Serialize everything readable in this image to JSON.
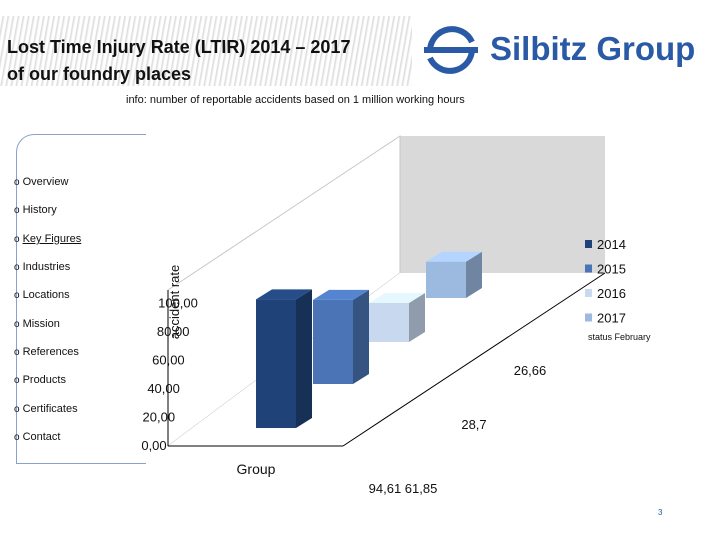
{
  "title_lines": [
    "Lost Time Injury Rate (LTIR) 2014 – 2017",
    "of our foundry places"
  ],
  "logo": {
    "text": "Silbitz Group",
    "color": "#2a5aa5"
  },
  "info": "info: number of reportable accidents based on 1 million working hours",
  "nav": [
    {
      "label": "Overview",
      "active": false
    },
    {
      "label": "History",
      "active": false
    },
    {
      "label": "Key Figures",
      "active": true
    },
    {
      "label": "Industries",
      "active": false
    },
    {
      "label": "Locations",
      "active": false
    },
    {
      "label": "Mission",
      "active": false
    },
    {
      "label": "References",
      "active": false
    },
    {
      "label": "Products",
      "active": false
    },
    {
      "label": "Certificates",
      "active": false
    },
    {
      "label": "Contact",
      "active": false
    }
  ],
  "bullet": "o",
  "chart_data": {
    "type": "bar",
    "categories": [
      "Group"
    ],
    "series": [
      {
        "name": "2014",
        "values": [
          94.61
        ],
        "color": "#1f4378"
      },
      {
        "name": "2015",
        "values": [
          61.85
        ],
        "color": "#4a74b5"
      },
      {
        "name": "2016",
        "values": [
          28.7
        ],
        "color": "#c8d8ef"
      },
      {
        "name": "2017",
        "values": [
          26.66
        ],
        "color": "#9cb9df"
      }
    ],
    "ylabel": "accident rate",
    "yticks": [
      "0,00",
      "20,00",
      "40,00",
      "60,00",
      "80,00",
      "100,00"
    ],
    "ylim": [
      0,
      100
    ],
    "grid": false,
    "legend_position": "right",
    "data_labels": [
      "26,66",
      "28,7",
      "94,61 61,85"
    ],
    "annotation": "status February"
  },
  "page_number": "3"
}
